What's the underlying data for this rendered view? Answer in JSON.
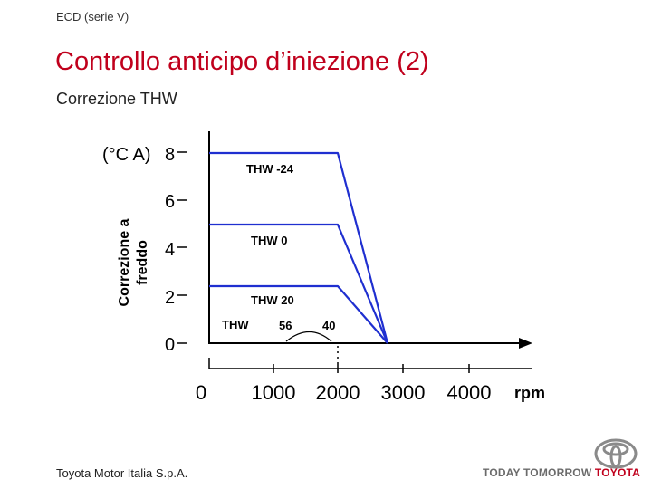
{
  "header": {
    "tag": "ECD (serie V)"
  },
  "title": "Controllo anticipo d’iniezione (2)",
  "subtitle": "Correzione THW",
  "diagram": {
    "y_unit": "(°C A)",
    "y_label_line1": "Correzione a",
    "y_label_line2": "freddo",
    "y_ticks": [
      "0",
      "2",
      "4",
      "6",
      "8"
    ],
    "x_ticks": [
      "0",
      "1000",
      "2000",
      "3000",
      "4000"
    ],
    "x_unit": "rpm",
    "series_labels": [
      "THW -24",
      "THW 0",
      "THW 20"
    ],
    "range_label": "THW",
    "range_low": "56",
    "range_high": "40",
    "line_color": "#1f2fd0"
  },
  "footer": {
    "company": "Toyota Motor Italia S.p.A.",
    "slogan": "TODAY TOMORROW",
    "brand": "TOYOTA"
  }
}
